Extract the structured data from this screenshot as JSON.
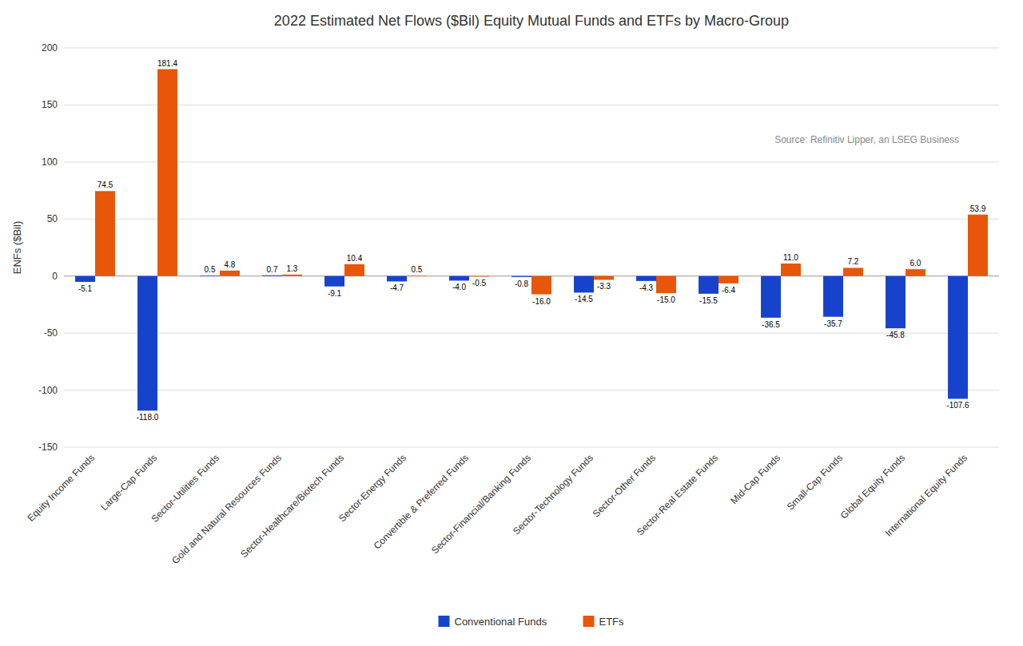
{
  "chart_data": {
    "type": "bar",
    "title": "2022 Estimated Net Flows ($Bil) Equity Mutual Funds and ETFs by Macro-Group",
    "ylabel": "ENFs ($Bil)",
    "annotation": "Source: Refinitiv Lipper, an LSEG Business",
    "categories": [
      "Equity Income Funds",
      "Large-Cap Funds",
      "Sector-Utilities Funds",
      "Gold and Natural Resources Funds",
      "Sector-Healthcare/Biotech Funds",
      "Sector-Energy Funds",
      "Convertible & Preferred Funds",
      "Sector-Financial/Banking Funds",
      "Sector-Technology Funds",
      "Sector-Other Funds",
      "Sector-Real Estate Funds",
      "Mid-Cap Funds",
      "Small-Cap Funds",
      "Global Equity Funds",
      "International Equity Funds"
    ],
    "series": [
      {
        "name": "Conventional Funds",
        "color": "#1743cc",
        "values": [
          -5.1,
          -118.0,
          0.5,
          0.7,
          -9.1,
          -4.7,
          -4.0,
          -0.8,
          -14.5,
          -4.3,
          -15.5,
          -36.5,
          -35.7,
          -45.8,
          -107.6
        ],
        "value_labels": [
          "-5.1",
          "-118.0",
          "0.5",
          "0.7",
          "-9.1",
          "-4.7",
          "-4.0",
          "-0.8",
          "-14.5",
          "-4.3",
          "-15.5",
          "-36.5",
          "-35.7",
          "-45.8",
          "-107.6"
        ]
      },
      {
        "name": "ETFs",
        "color": "#e8560a",
        "values": [
          74.5,
          181.4,
          4.8,
          1.3,
          10.4,
          0.5,
          -0.5,
          -16.0,
          -3.3,
          -15.0,
          -6.4,
          11.0,
          7.2,
          6.0,
          53.9
        ],
        "value_labels": [
          "74.5",
          "181.4",
          "4.8",
          "1.3",
          "10.4",
          "0.5",
          "-0.5",
          "-16.0",
          "-3.3",
          "-15.0",
          "-6.4",
          "11.0",
          "7.2",
          "6.0",
          "53.9"
        ]
      }
    ],
    "ylim": [
      -150,
      200
    ],
    "yticks": [
      -150,
      -100,
      -50,
      0,
      50,
      100,
      150,
      200
    ],
    "grid": true,
    "legend": "bottom",
    "data_labels": true
  }
}
